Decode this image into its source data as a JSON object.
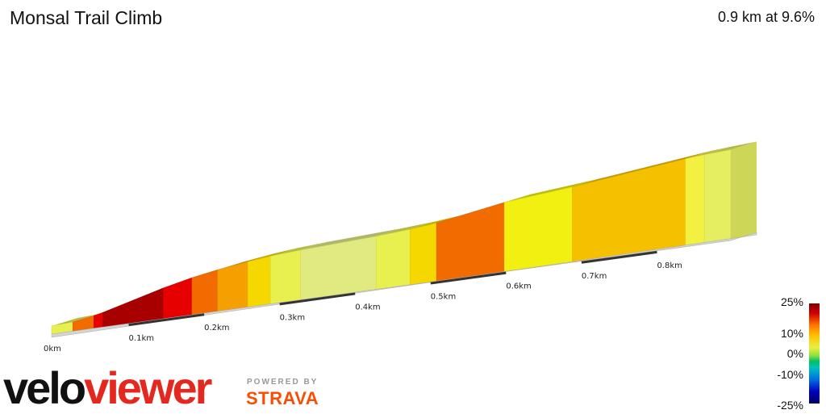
{
  "header": {
    "title": "Monsal Trail Climb",
    "stats": "0.9 km at 9.6%"
  },
  "chart_data": {
    "type": "area",
    "title": "Monsal Trail Climb",
    "xlabel": "",
    "ylabel": "",
    "xlim": [
      0,
      0.9
    ],
    "x_ticks": [
      "0km",
      "0.1km",
      "0.2km",
      "0.3km",
      "0.4km",
      "0.5km",
      "0.6km",
      "0.7km",
      "0.8km"
    ],
    "segments": [
      {
        "start": 0.0,
        "end": 0.028,
        "gradient": 4,
        "color": "#e8f050"
      },
      {
        "start": 0.028,
        "end": 0.056,
        "gradient": 15,
        "color": "#f26b00"
      },
      {
        "start": 0.056,
        "end": 0.068,
        "gradient": 20,
        "color": "#e60000"
      },
      {
        "start": 0.068,
        "end": 0.148,
        "gradient": 24,
        "color": "#a80000"
      },
      {
        "start": 0.148,
        "end": 0.186,
        "gradient": 20,
        "color": "#e60000"
      },
      {
        "start": 0.186,
        "end": 0.22,
        "gradient": 15,
        "color": "#f26b00"
      },
      {
        "start": 0.22,
        "end": 0.26,
        "gradient": 12,
        "color": "#f5a000"
      },
      {
        "start": 0.26,
        "end": 0.29,
        "gradient": 9,
        "color": "#f5d800"
      },
      {
        "start": 0.29,
        "end": 0.33,
        "gradient": 6,
        "color": "#e8f050"
      },
      {
        "start": 0.33,
        "end": 0.43,
        "gradient": 4,
        "color": "#e0ea80"
      },
      {
        "start": 0.43,
        "end": 0.475,
        "gradient": 6,
        "color": "#e8f050"
      },
      {
        "start": 0.475,
        "end": 0.51,
        "gradient": 9,
        "color": "#f5d800"
      },
      {
        "start": 0.51,
        "end": 0.6,
        "gradient": 15,
        "color": "#f26b00"
      },
      {
        "start": 0.6,
        "end": 0.69,
        "gradient": 8,
        "color": "#f2f010"
      },
      {
        "start": 0.69,
        "end": 0.84,
        "gradient": 10,
        "color": "#f5c000"
      },
      {
        "start": 0.84,
        "end": 0.865,
        "gradient": 7,
        "color": "#f2f040"
      },
      {
        "start": 0.865,
        "end": 0.9,
        "gradient": 5,
        "color": "#e4ee60"
      }
    ],
    "legend": {
      "labels": [
        "25%",
        "10%",
        "0%",
        "-10%",
        "-25%"
      ]
    }
  },
  "branding": {
    "logo_part1": "velo",
    "logo_part2": "viewer",
    "powered_by": "POWERED BY",
    "strava": "STRAVA"
  }
}
